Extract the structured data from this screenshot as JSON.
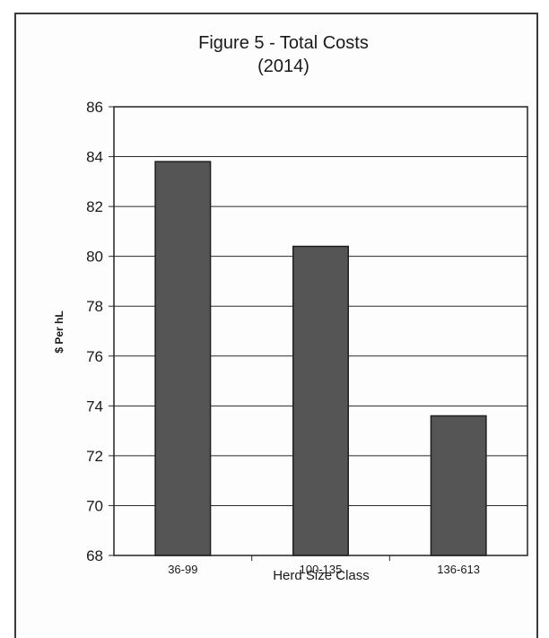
{
  "chart_data": {
    "type": "bar",
    "title": "Figure 5 - Total Costs",
    "subtitle": "(2014)",
    "categories": [
      "36-99",
      "100-135",
      "136-613"
    ],
    "values": [
      83.8,
      80.4,
      73.6
    ],
    "xlabel": "Herd Size Class",
    "ylabel": "$ Per hL",
    "ylim": [
      68,
      86
    ],
    "yticks": [
      86,
      84,
      82,
      80,
      78,
      76,
      74,
      72,
      70,
      68
    ],
    "grid": true,
    "bar_color": "#555555"
  }
}
